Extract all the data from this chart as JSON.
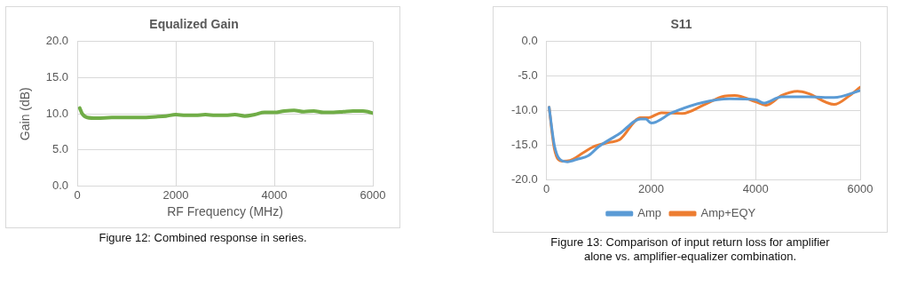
{
  "chart_data": [
    {
      "type": "line",
      "title": "Equalized Gain",
      "xlabel": "RF Frequency (MHz)",
      "ylabel": "Gain (dB)",
      "x": [
        50,
        100,
        200,
        400,
        700,
        1000,
        1300,
        1600,
        1800,
        2000,
        2200,
        2400,
        2600,
        2800,
        3000,
        3200,
        3400,
        3600,
        3800,
        4000,
        4200,
        4400,
        4600,
        4800,
        5000,
        5200,
        5400,
        5600,
        5800,
        5900,
        6000
      ],
      "series": [
        {
          "color": "#70ad47",
          "values": [
            10.8,
            10.0,
            9.5,
            9.4,
            9.5,
            9.5,
            9.5,
            9.6,
            9.7,
            9.9,
            9.8,
            9.8,
            9.9,
            9.8,
            9.8,
            9.9,
            9.7,
            9.9,
            10.2,
            10.2,
            10.4,
            10.5,
            10.3,
            10.4,
            10.2,
            10.2,
            10.3,
            10.4,
            10.4,
            10.3,
            10.1
          ]
        }
      ],
      "xlim": [
        0,
        6000
      ],
      "xticks": [
        0,
        2000,
        4000,
        6000
      ],
      "ylim": [
        0,
        20
      ],
      "yticks": [
        {
          "value": 0,
          "label": "0.0"
        },
        {
          "value": 5,
          "label": "5.0"
        },
        {
          "value": 10,
          "label": "10.0"
        },
        {
          "value": 15,
          "label": "15.0"
        },
        {
          "value": 20,
          "label": "20.0"
        }
      ],
      "grid": true,
      "legend": false,
      "marker": "none",
      "annotations": [
        "Figure 12: Combined response in series."
      ]
    },
    {
      "type": "line",
      "title": "S11",
      "series": [
        {
          "name": "Amp",
          "color": "#5b9bd5",
          "x": [
            50,
            150,
            250,
            400,
            600,
            800,
            1000,
            1400,
            1800,
            1900,
            2000,
            2400,
            3000,
            3500,
            4000,
            4150,
            4500,
            5000,
            5500,
            6000
          ],
          "values": [
            -9.5,
            -15.0,
            -17.0,
            -17.4,
            -17.0,
            -16.5,
            -15.2,
            -13.3,
            -11.2,
            -11.2,
            -11.8,
            -10.3,
            -8.8,
            -8.3,
            -8.4,
            -8.9,
            -8.0,
            -8.0,
            -8.1,
            -7.1
          ]
        },
        {
          "name": "Amp+EQY",
          "color": "#ed7d31",
          "x": [
            50,
            150,
            300,
            450,
            700,
            900,
            1200,
            1400,
            1800,
            1950,
            2200,
            2600,
            3000,
            3400,
            3600,
            4000,
            4200,
            4500,
            4800,
            5000,
            5500,
            5800,
            6000
          ],
          "values": [
            -9.5,
            -15.5,
            -17.3,
            -17.2,
            -16.1,
            -15.2,
            -14.6,
            -14.2,
            -11.0,
            -11.0,
            -10.3,
            -10.4,
            -9.2,
            -7.9,
            -7.8,
            -8.7,
            -9.2,
            -7.8,
            -7.2,
            -7.5,
            -9.1,
            -7.8,
            -6.6
          ]
        }
      ],
      "xlim": [
        0,
        6000
      ],
      "xticks": [
        0,
        2000,
        4000,
        6000
      ],
      "ylim": [
        -20,
        0
      ],
      "yticks": [
        {
          "value": -20,
          "label": "-20.0"
        },
        {
          "value": -15,
          "label": "-15.0"
        },
        {
          "value": -10,
          "label": "-10.0"
        },
        {
          "value": -5,
          "label": "-5.0"
        },
        {
          "value": 0,
          "label": "0.0"
        }
      ],
      "grid": true,
      "legend": "bottom",
      "marker": "none",
      "annotations": [
        "Figure 13: Comparison of input return loss for amplifier alone vs. amplifier-equalizer combination."
      ]
    }
  ]
}
